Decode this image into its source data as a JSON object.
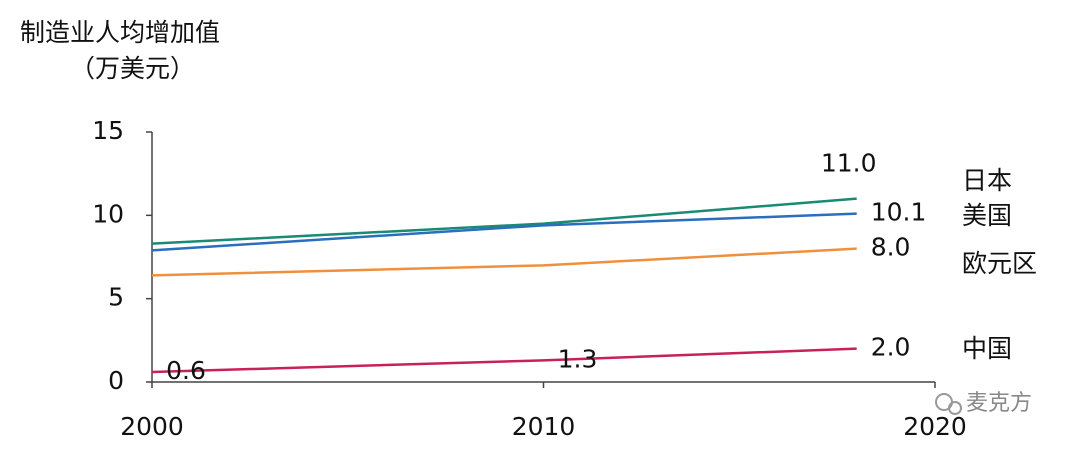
{
  "chart_data": {
    "type": "line",
    "title": "制造业人均增加值",
    "subtitle": "（万美元）",
    "x": [
      2000,
      2010,
      2018
    ],
    "xlim": [
      2000,
      2020
    ],
    "xticks": [
      2000,
      2010,
      2020
    ],
    "ylim": [
      0,
      15
    ],
    "yticks": [
      0,
      5,
      10,
      15
    ],
    "series": [
      {
        "name": "日本",
        "color": "#1a8a72",
        "values": [
          8.3,
          9.5,
          11
        ],
        "value_labels": [
          null,
          null,
          "11.0"
        ]
      },
      {
        "name": "美国",
        "color": "#2a6ebf",
        "values": [
          7.9,
          9.4,
          10.1
        ],
        "value_labels": [
          null,
          null,
          "10.1"
        ]
      },
      {
        "name": "欧元区",
        "color": "#f0903c",
        "values": [
          6.4,
          7.0,
          8
        ],
        "value_labels": [
          null,
          null,
          "8.0"
        ]
      },
      {
        "name": "中国",
        "color": "#c8205a",
        "values": [
          0.6,
          1.3,
          2
        ],
        "value_labels": [
          "0.6",
          "1.3",
          "2.0"
        ]
      }
    ],
    "watermark": "麦克方"
  }
}
